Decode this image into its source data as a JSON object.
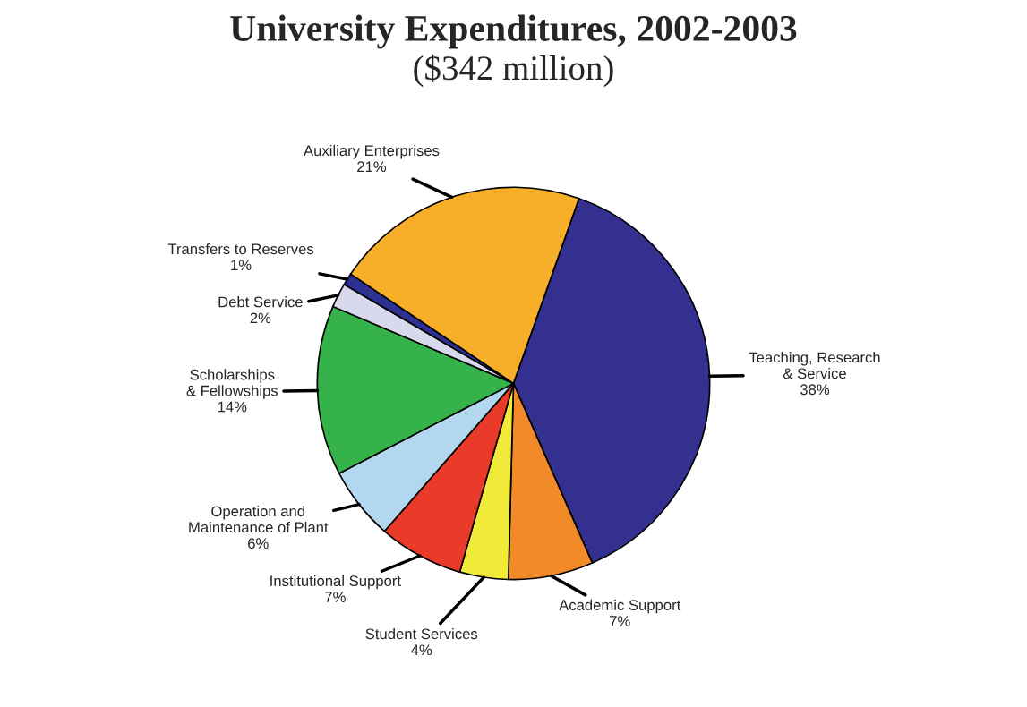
{
  "chart_data": {
    "type": "pie",
    "title": "University Expenditures, 2002-2003",
    "subtitle": "($342 million)",
    "categories": [
      "Teaching, Research\n& Service",
      "Academic Support",
      "Student Services",
      "Institutional Support",
      "Operation and\nMaintenance of Plant",
      "Scholarships\n& Fellowships",
      "Debt Service",
      "Transfers to Reserves",
      "Auxiliary Enterprises"
    ],
    "values": [
      38,
      7,
      4,
      7,
      6,
      14,
      2,
      1,
      21
    ],
    "value_labels": [
      "38%",
      "7%",
      "4%",
      "7%",
      "6%",
      "14%",
      "2%",
      "1%",
      "21%"
    ],
    "colors": [
      "#343090",
      "#f38a2a",
      "#f2ea38",
      "#ea3a29",
      "#b3d7ef",
      "#36b24a",
      "#d9d9ee",
      "#2e3192",
      "#f7ae28"
    ],
    "legend": false
  }
}
